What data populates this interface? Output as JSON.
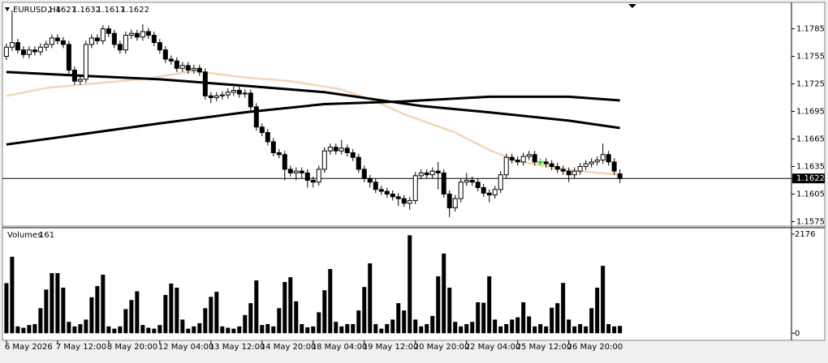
{
  "chart_data": [
    {
      "type": "candlestick",
      "title": "EURUSD,H4",
      "xlim": [
        -0.7,
        138.2
      ],
      "xticks": [
        {
          "value": 0,
          "label": "6 May 2026"
        },
        {
          "value": 9,
          "label": "7 May 12:00"
        },
        {
          "value": 18,
          "label": "8 May 20:00"
        },
        {
          "value": 27,
          "label": "12 May 04:00"
        },
        {
          "value": 36,
          "label": "13 May 12:00"
        },
        {
          "value": 45,
          "label": "14 May 20:00"
        },
        {
          "value": 54,
          "label": "18 May 04:00"
        },
        {
          "value": 63,
          "label": "19 May 12:00"
        },
        {
          "value": 72,
          "label": "20 May 20:00"
        },
        {
          "value": 81,
          "label": "22 May 04:00"
        },
        {
          "value": 90,
          "label": "25 May 12:00"
        },
        {
          "value": 99,
          "label": "26 May 20:00"
        }
      ],
      "ylim": [
        1.1571,
        1.1812
      ],
      "yticks": [
        1.1785,
        1.1755,
        1.1725,
        1.1695,
        1.1665,
        1.1635,
        1.1605,
        1.1575
      ],
      "open": [
        1.1755,
        1.1765,
        1.177,
        1.1762,
        1.1757,
        1.1762,
        1.176,
        1.1765,
        1.1768,
        1.1775,
        1.1772,
        1.1768,
        1.174,
        1.1728,
        1.173,
        1.1768,
        1.1775,
        1.1772,
        1.1785,
        1.178,
        1.1768,
        1.1762,
        1.1778,
        1.178,
        1.1776,
        1.1782,
        1.1778,
        1.177,
        1.1762,
        1.1752,
        1.175,
        1.1742,
        1.1745,
        1.174,
        1.1742,
        1.1738,
        1.1712,
        1.171,
        1.1712,
        1.1713,
        1.1716,
        1.1718,
        1.1714,
        1.1715,
        1.17,
        1.1678,
        1.1672,
        1.1662,
        1.165,
        1.1648,
        1.1632,
        1.1628,
        1.163,
        1.1628,
        1.162,
        1.1618,
        1.1632,
        1.1652,
        1.1656,
        1.1652,
        1.1655,
        1.165,
        1.1645,
        1.1632,
        1.1622,
        1.1618,
        1.161,
        1.1608,
        1.1605,
        1.1602,
        1.16,
        1.1595,
        1.1598,
        1.1625,
        1.1628,
        1.1626,
        1.163,
        1.1628,
        1.1605,
        1.159,
        1.16,
        1.1618,
        1.162,
        1.1618,
        1.1612,
        1.1606,
        1.1604,
        1.161,
        1.1626,
        1.1645,
        1.1642,
        1.164,
        1.1646,
        1.1648,
        1.164,
        1.164,
        1.1638,
        1.1635,
        1.1632,
        1.163,
        1.1626,
        1.163,
        1.1635,
        1.1638,
        1.164,
        1.1642,
        1.1648,
        1.164,
        1.1627
      ],
      "high": [
        1.1769,
        1.1805,
        1.1774,
        1.1766,
        1.1766,
        1.1766,
        1.1769,
        1.1772,
        1.1779,
        1.1779,
        1.1776,
        1.1772,
        1.1744,
        1.1734,
        1.1772,
        1.1779,
        1.1779,
        1.1789,
        1.1789,
        1.1784,
        1.1772,
        1.1782,
        1.1784,
        1.1784,
        1.179,
        1.1786,
        1.1782,
        1.1774,
        1.1766,
        1.1756,
        1.1754,
        1.1749,
        1.1749,
        1.1746,
        1.1746,
        1.1742,
        1.1716,
        1.1716,
        1.1717,
        1.172,
        1.1722,
        1.1722,
        1.1719,
        1.1719,
        1.1704,
        1.1682,
        1.1676,
        1.1666,
        1.1654,
        1.1652,
        1.1636,
        1.1634,
        1.1634,
        1.1632,
        1.1624,
        1.1636,
        1.1656,
        1.166,
        1.166,
        1.1664,
        1.1659,
        1.1654,
        1.1649,
        1.1636,
        1.1626,
        1.1622,
        1.1614,
        1.1612,
        1.1609,
        1.1606,
        1.1604,
        1.1602,
        1.1629,
        1.1632,
        1.1632,
        1.1634,
        1.164,
        1.1632,
        1.1609,
        1.1604,
        1.1622,
        1.1628,
        1.1624,
        1.1622,
        1.1616,
        1.161,
        1.1614,
        1.163,
        1.1649,
        1.1649,
        1.1646,
        1.165,
        1.1652,
        1.1652,
        1.1644,
        1.1644,
        1.1642,
        1.1639,
        1.1636,
        1.1634,
        1.1634,
        1.1639,
        1.1642,
        1.1644,
        1.1646,
        1.166,
        1.1652,
        1.1644,
        1.1632
      ],
      "low": [
        1.1751,
        1.1761,
        1.1758,
        1.1753,
        1.1753,
        1.1756,
        1.1756,
        1.1761,
        1.1764,
        1.1768,
        1.1764,
        1.1736,
        1.1724,
        1.1724,
        1.1726,
        1.1764,
        1.1768,
        1.1768,
        1.1776,
        1.1764,
        1.1758,
        1.1758,
        1.1774,
        1.1772,
        1.1772,
        1.1774,
        1.1766,
        1.1758,
        1.1748,
        1.1746,
        1.1738,
        1.1738,
        1.1736,
        1.1736,
        1.1734,
        1.1708,
        1.1704,
        1.1706,
        1.1708,
        1.1709,
        1.1712,
        1.171,
        1.171,
        1.1696,
        1.1674,
        1.1668,
        1.1658,
        1.1646,
        1.1644,
        1.162,
        1.1624,
        1.162,
        1.1622,
        1.1612,
        1.1612,
        1.1614,
        1.1628,
        1.1648,
        1.1648,
        1.1648,
        1.1646,
        1.1641,
        1.1628,
        1.1618,
        1.1612,
        1.1606,
        1.1604,
        1.1601,
        1.1598,
        1.1592,
        1.1591,
        1.1588,
        1.1594,
        1.1621,
        1.1622,
        1.1622,
        1.161,
        1.1601,
        1.158,
        1.1586,
        1.1596,
        1.1614,
        1.1614,
        1.1608,
        1.1602,
        1.1596,
        1.16,
        1.1606,
        1.1622,
        1.1638,
        1.1636,
        1.1636,
        1.1642,
        1.1636,
        1.1636,
        1.1634,
        1.1631,
        1.1628,
        1.1626,
        1.1618,
        1.1622,
        1.1626,
        1.1631,
        1.1634,
        1.1636,
        1.1638,
        1.1636,
        1.1626,
        1.1617
      ],
      "close": [
        1.1765,
        1.177,
        1.1762,
        1.1757,
        1.1762,
        1.176,
        1.1765,
        1.1768,
        1.1775,
        1.1772,
        1.1768,
        1.174,
        1.1728,
        1.173,
        1.1768,
        1.1775,
        1.1772,
        1.1785,
        1.178,
        1.1768,
        1.1762,
        1.1778,
        1.178,
        1.1776,
        1.1782,
        1.1778,
        1.177,
        1.1762,
        1.1752,
        1.175,
        1.1742,
        1.1745,
        1.174,
        1.1742,
        1.1738,
        1.1712,
        1.171,
        1.1712,
        1.1713,
        1.1716,
        1.1718,
        1.1714,
        1.1715,
        1.17,
        1.1678,
        1.1672,
        1.1662,
        1.165,
        1.1648,
        1.1632,
        1.1628,
        1.163,
        1.1628,
        1.162,
        1.1618,
        1.1632,
        1.1652,
        1.1656,
        1.1652,
        1.1655,
        1.165,
        1.1645,
        1.1632,
        1.1622,
        1.1618,
        1.161,
        1.1608,
        1.1605,
        1.1602,
        1.16,
        1.1595,
        1.1598,
        1.1625,
        1.1628,
        1.1626,
        1.163,
        1.1628,
        1.1605,
        1.159,
        1.16,
        1.1618,
        1.162,
        1.1618,
        1.1612,
        1.1606,
        1.1604,
        1.161,
        1.1626,
        1.1645,
        1.1642,
        1.164,
        1.1646,
        1.1648,
        1.164,
        1.164,
        1.1638,
        1.1635,
        1.1632,
        1.163,
        1.1626,
        1.163,
        1.1635,
        1.1638,
        1.164,
        1.1642,
        1.1648,
        1.164,
        1.163,
        1.1622
      ],
      "colors": {
        "bull": "#ffffff",
        "bear": "#000000",
        "outline": "#000000",
        "doji": "#00c000",
        "price_line": "#000000"
      },
      "moving_averages": [
        {
          "color": "#f5d5b5",
          "x": [
            0,
            7.5,
            13,
            25,
            33,
            42,
            50,
            59,
            65,
            70,
            79,
            85,
            90,
            99,
            108
          ],
          "values": [
            1.1712,
            1.1721,
            1.1724,
            1.1731,
            1.1739,
            1.1732,
            1.1728,
            1.1719,
            1.1706,
            1.1692,
            1.1672,
            1.1653,
            1.1641,
            1.1631,
            1.1626
          ]
        },
        {
          "color": "#000000",
          "x": [
            0,
            13,
            27,
            42,
            56,
            65,
            73,
            85,
            99,
            108
          ],
          "values": [
            1.1738,
            1.1734,
            1.173,
            1.1723,
            1.1716,
            1.1708,
            1.1701,
            1.1694,
            1.1685,
            1.1677
          ]
        },
        {
          "color": "#000000",
          "x": [
            0,
            13,
            27,
            42,
            56,
            70,
            85,
            99,
            108
          ],
          "values": [
            1.1659,
            1.167,
            1.1682,
            1.1694,
            1.1703,
            1.1706,
            1.1711,
            1.1711,
            1.1707
          ]
        }
      ]
    },
    {
      "type": "bar",
      "title": "Volumes",
      "color": "#000000",
      "xlim": [
        -0.7,
        138.2
      ],
      "ylim": [
        -120,
        2300
      ],
      "yticks": [
        2176,
        0
      ],
      "values": [
        1100,
        1680,
        150,
        120,
        180,
        200,
        550,
        960,
        1320,
        1320,
        1000,
        250,
        150,
        200,
        300,
        790,
        1035,
        1285,
        150,
        100,
        150,
        530,
        730,
        920,
        180,
        120,
        100,
        180,
        840,
        1090,
        1000,
        300,
        100,
        150,
        220,
        550,
        800,
        910,
        150,
        120,
        100,
        150,
        400,
        660,
        1160,
        180,
        200,
        150,
        550,
        1125,
        1230,
        700,
        200,
        130,
        150,
        460,
        945,
        1410,
        250,
        150,
        200,
        200,
        500,
        1015,
        1535,
        200,
        100,
        200,
        300,
        660,
        500,
        2150,
        300,
        150,
        200,
        380,
        1250,
        1750,
        1000,
        250,
        150,
        200,
        250,
        680,
        670,
        1250,
        300,
        150,
        200,
        300,
        350,
        680,
        370,
        150,
        200,
        150,
        560,
        660,
        1105,
        300,
        150,
        200,
        150,
        550,
        1000,
        1480,
        200,
        150,
        161
      ]
    }
  ]
}
